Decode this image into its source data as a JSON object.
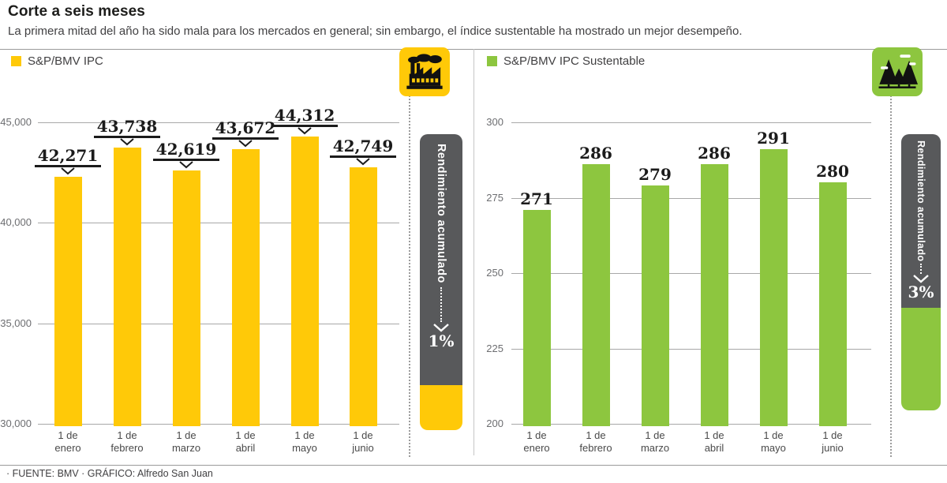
{
  "header": {
    "title": "Corte a seis meses",
    "subtitle": "La primera mitad del año ha sido mala para los mercados en general; sin embargo, el índice sustentable ha mostrado un mejor desempeño."
  },
  "colors": {
    "yellow": "#FFC908",
    "green": "#8DC63F",
    "gray_bar": "#58595B",
    "gridline": "#A8A8A8",
    "text_dark": "#1B1B1B",
    "text_gray": "#6D6E71"
  },
  "icons": {
    "left": "factory-icon",
    "right": "trees-icon"
  },
  "chart_data": [
    {
      "type": "bar",
      "legend": "S&P/BMV IPC",
      "color": "#FFC908",
      "categories": [
        [
          "1 de",
          "enero"
        ],
        [
          "1 de",
          "febrero"
        ],
        [
          "1 de",
          "marzo"
        ],
        [
          "1 de",
          "abril"
        ],
        [
          "1 de",
          "mayo"
        ],
        [
          "1 de",
          "junio"
        ]
      ],
      "values": [
        42271,
        43738,
        42619,
        43672,
        44312,
        42749
      ],
      "value_labels": [
        "42,271",
        "43,738",
        "42,619",
        "43,672",
        "44,312",
        "42,749"
      ],
      "ylim": [
        30000,
        45000
      ],
      "yticks": [
        45000,
        40000,
        35000,
        30000
      ],
      "ytick_labels": [
        "45,000",
        "40,000",
        "35,000",
        "30,000"
      ],
      "grid": true,
      "legend_position": "top-left",
      "sidebar": {
        "label": "Rendimiento acumulado",
        "value": "1%"
      }
    },
    {
      "type": "bar",
      "legend": "S&P/BMV IPC Sustentable",
      "color": "#8DC63F",
      "categories": [
        [
          "1 de",
          "enero"
        ],
        [
          "1 de",
          "febrero"
        ],
        [
          "1 de",
          "marzo"
        ],
        [
          "1 de",
          "abril"
        ],
        [
          "1 de",
          "mayo"
        ],
        [
          "1 de",
          "junio"
        ]
      ],
      "values": [
        271,
        286,
        279,
        286,
        291,
        280
      ],
      "value_labels": [
        "271",
        "286",
        "279",
        "286",
        "291",
        "280"
      ],
      "ylim": [
        200,
        300
      ],
      "yticks": [
        300,
        275,
        250,
        225,
        200
      ],
      "ytick_labels": [
        "300",
        "275",
        "250",
        "225",
        "200"
      ],
      "grid": true,
      "legend_position": "top-left",
      "sidebar": {
        "label": "Rendimiento acumulado",
        "value": "3%"
      }
    }
  ],
  "footer": {
    "credits": "· FUENTE: BMV · GRÁFICO: Alfredo San Juan"
  }
}
